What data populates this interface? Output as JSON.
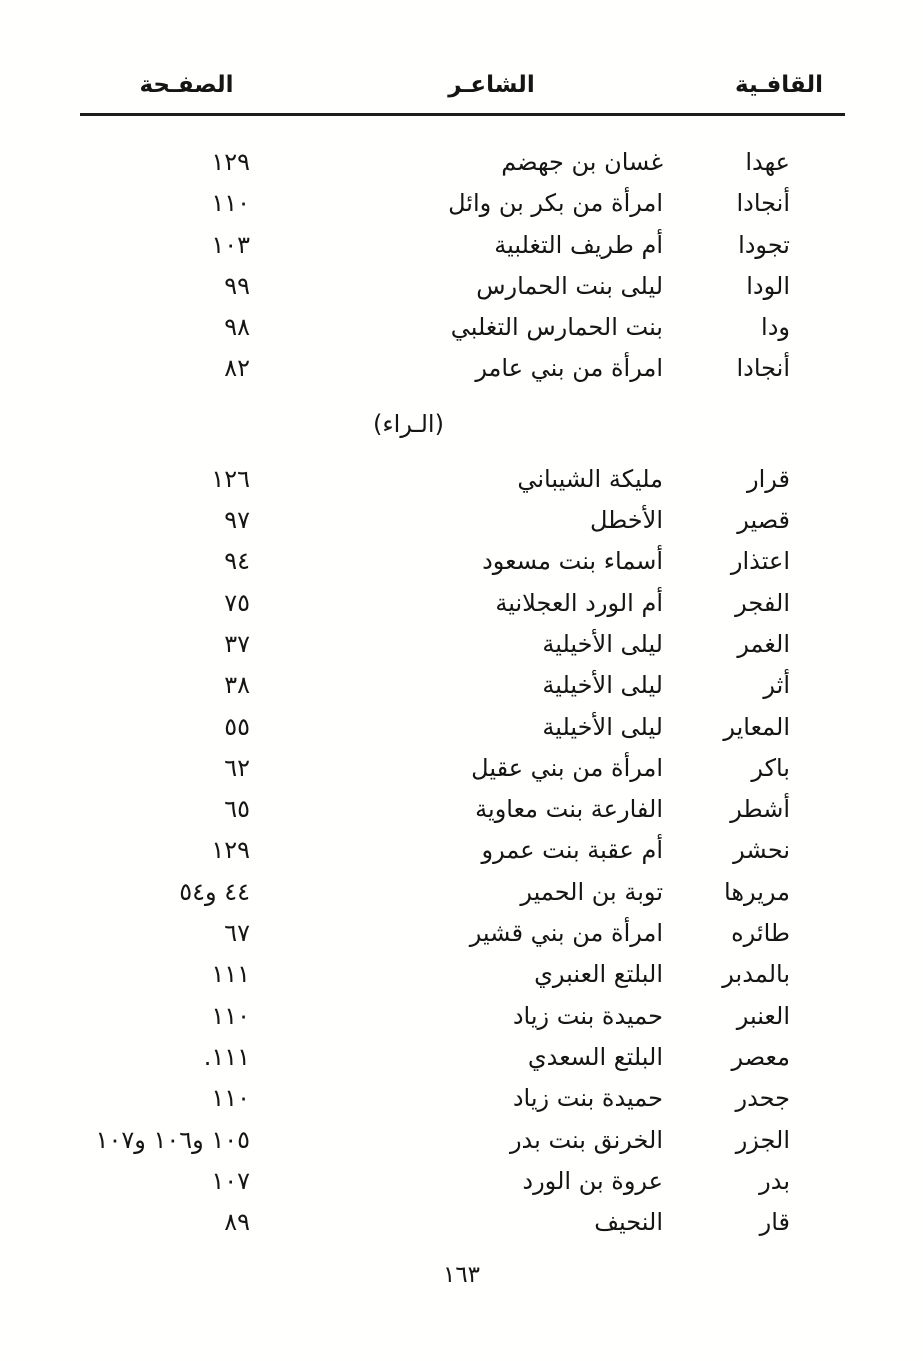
{
  "document": {
    "header": {
      "rhyme_label": "القافـية",
      "poet_label": "الشاعـر",
      "page_label": "الصفـحة"
    },
    "entries": [
      {
        "type": "row",
        "rhyme": "عهدا",
        "poet": "غسان بن جهضم",
        "page": "١٢٩"
      },
      {
        "type": "row",
        "rhyme": "أنجادا",
        "poet": "امرأة من بكر بن وائل",
        "page": "١١٠"
      },
      {
        "type": "row",
        "rhyme": "تجودا",
        "poet": "أم طريف التغلبية",
        "page": "١٠٣"
      },
      {
        "type": "row",
        "rhyme": "الودا",
        "poet": "ليلى بنت الحمارس",
        "page": "٩٩"
      },
      {
        "type": "row",
        "rhyme": "ودا",
        "poet": "بنت الحمارس التغلبي",
        "page": "٩٨"
      },
      {
        "type": "row",
        "rhyme": "أنجادا",
        "poet": "امرأة من بني عامر",
        "page": "٨٢"
      },
      {
        "type": "section",
        "label": "(الـراء)"
      },
      {
        "type": "row",
        "rhyme": "قرار",
        "poet": "مليكة الشيباني",
        "page": "١٢٦"
      },
      {
        "type": "row",
        "rhyme": "قصير",
        "poet": "الأخطل",
        "page": "٩٧"
      },
      {
        "type": "row",
        "rhyme": "اعتذار",
        "poet": "أسماء بنت مسعود",
        "page": "٩٤"
      },
      {
        "type": "row",
        "rhyme": "الفجر",
        "poet": "أم الورد العجلانية",
        "page": "٧٥"
      },
      {
        "type": "row",
        "rhyme": "الغمر",
        "poet": "ليلى الأخيلية",
        "page": "٣٧"
      },
      {
        "type": "row",
        "rhyme": "أثر",
        "poet": "ليلى الأخيلية",
        "page": "٣٨"
      },
      {
        "type": "row",
        "rhyme": "المعاير",
        "poet": "ليلى الأخيلية",
        "page": "٥٥"
      },
      {
        "type": "row",
        "rhyme": "باكر",
        "poet": "امرأة من بني عقيل",
        "page": "٦٢"
      },
      {
        "type": "row",
        "rhyme": "أشطر",
        "poet": "الفارعة بنت معاوية",
        "page": "٦٥"
      },
      {
        "type": "row",
        "rhyme": "نحشر",
        "poet": "أم عقبة بنت عمرو",
        "page": "١٢٩"
      },
      {
        "type": "row",
        "rhyme": "مريرها",
        "poet": "توبة بن الحمير",
        "page": "٤٤ و٥٤"
      },
      {
        "type": "row",
        "rhyme": "طائره",
        "poet": "امرأة من بني قشير",
        "page": "٦٧"
      },
      {
        "type": "row",
        "rhyme": "بالمدبر",
        "poet": "البلتع العنبري",
        "page": "١١١"
      },
      {
        "type": "row",
        "rhyme": "العنبر",
        "poet": "حميدة بنت زياد",
        "page": "١١٠"
      },
      {
        "type": "row",
        "rhyme": "معصر",
        "poet": "البلتع السعدي",
        "page": "١١١."
      },
      {
        "type": "row",
        "rhyme": "جحدر",
        "poet": "حميدة بنت زياد",
        "page": "١١٠"
      },
      {
        "type": "row",
        "rhyme": "الجزر",
        "poet": "الخرنق بنت بدر",
        "page": "١٠٥ و١٠٦ و١٠٧"
      },
      {
        "type": "row",
        "rhyme": "بدر",
        "poet": "عروة بن الورد",
        "page": "١٠٧"
      },
      {
        "type": "row",
        "rhyme": "قار",
        "poet": "النحيف",
        "page": "٨٩"
      }
    ],
    "footer_page_number": "١٦٣"
  }
}
